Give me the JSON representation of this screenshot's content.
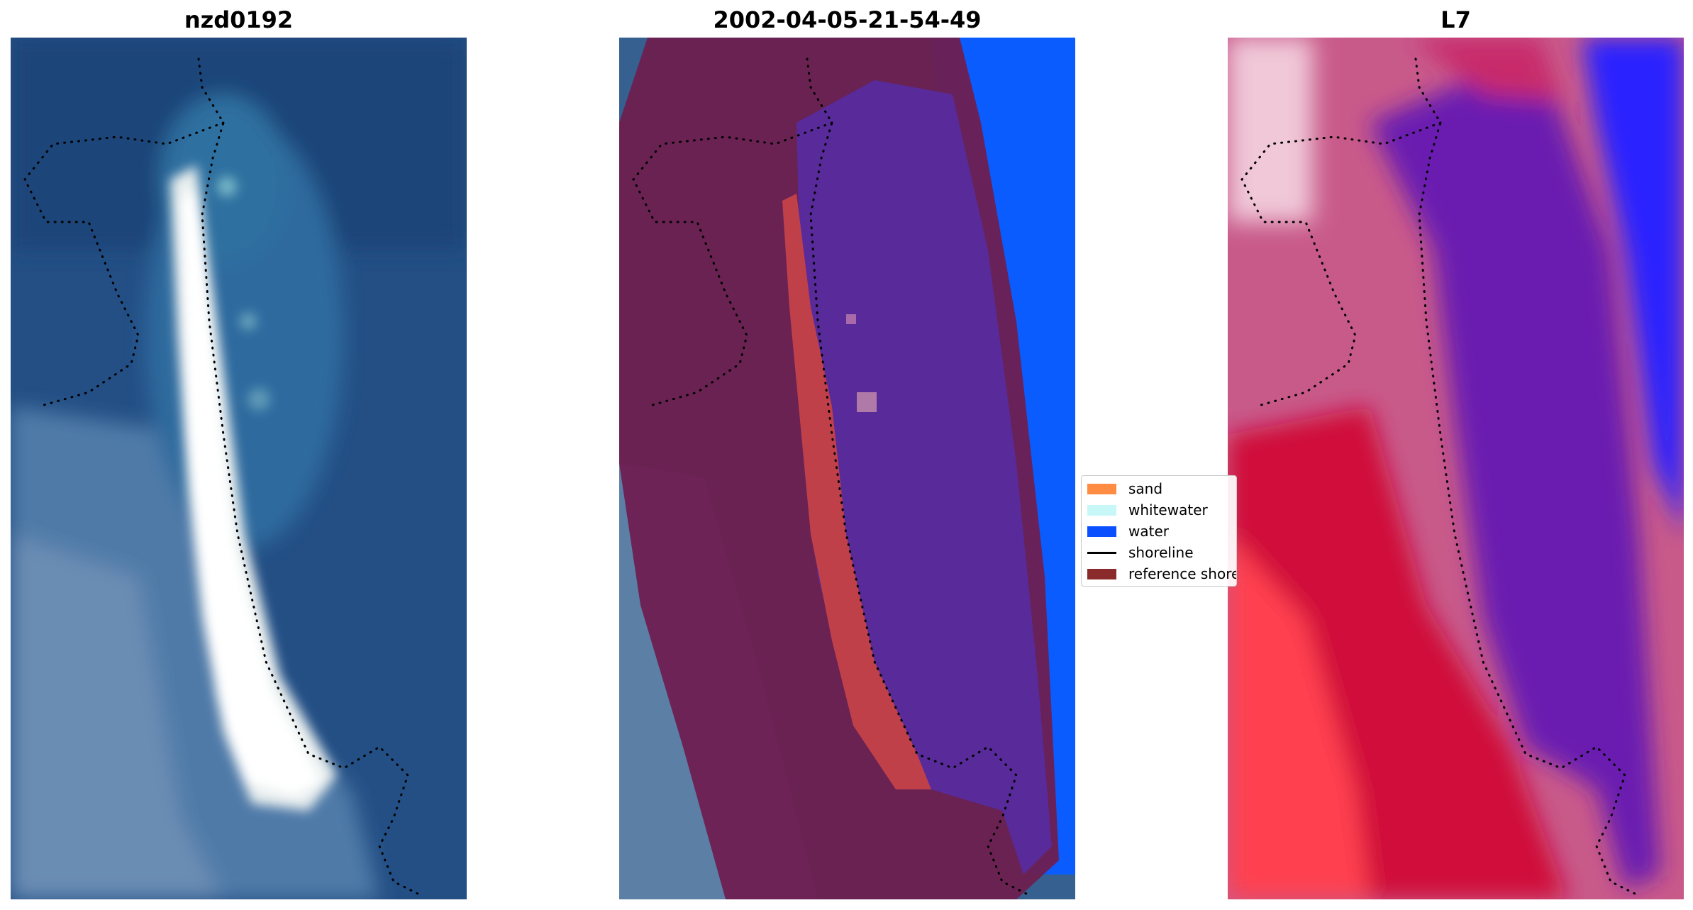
{
  "panels": [
    {
      "title": "nzd0192"
    },
    {
      "title": "2002-04-05-21-54-49"
    },
    {
      "title": "L7"
    }
  ],
  "legend": {
    "items": [
      {
        "label": "sand",
        "color": "#ff8c42",
        "kind": "patch"
      },
      {
        "label": "whitewater",
        "color": "#c8f7f7",
        "kind": "patch"
      },
      {
        "label": "water",
        "color": "#0a50ff",
        "kind": "patch"
      },
      {
        "label": "shoreline",
        "color": "#000000",
        "kind": "line"
      },
      {
        "label": "reference shoreline",
        "color": "#8b2a2a",
        "kind": "patch"
      }
    ]
  },
  "colors": {
    "ocean_rgb": "#2a5a8c",
    "sand_rgb": "#f2f4f0",
    "land_class": "#6e1f50",
    "sand_class": "#c0404a",
    "water_class": "#582a9a",
    "water_blue": "#0a5cff",
    "index_red": "#d0103a",
    "index_purple": "#6a1ab0",
    "index_blue": "#2a20ff"
  }
}
